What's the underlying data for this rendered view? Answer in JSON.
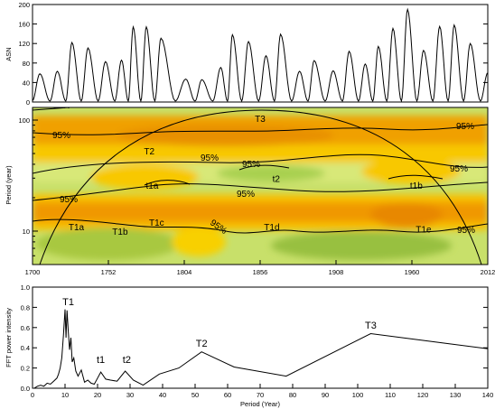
{
  "colors": {
    "cone": "#000000",
    "power_high": "#f0a000",
    "power_mid": "#f8c800",
    "power_low": "#98c840",
    "background": "#ffffff"
  },
  "chart_data": [
    {
      "type": "line",
      "ylabel": "ASN",
      "xlim": [
        1700,
        2012
      ],
      "ylim": [
        0,
        200
      ],
      "yticks": [
        0,
        40,
        80,
        120,
        160,
        200
      ],
      "cycle_maxima": [
        {
          "x": 1705,
          "y": 58
        },
        {
          "x": 1717,
          "y": 63
        },
        {
          "x": 1727,
          "y": 122
        },
        {
          "x": 1738,
          "y": 111
        },
        {
          "x": 1750,
          "y": 83
        },
        {
          "x": 1761,
          "y": 86
        },
        {
          "x": 1769,
          "y": 154
        },
        {
          "x": 1778,
          "y": 154
        },
        {
          "x": 1788,
          "y": 131
        },
        {
          "x": 1805,
          "y": 47
        },
        {
          "x": 1816,
          "y": 46
        },
        {
          "x": 1829,
          "y": 71
        },
        {
          "x": 1837,
          "y": 138
        },
        {
          "x": 1848,
          "y": 124
        },
        {
          "x": 1860,
          "y": 95
        },
        {
          "x": 1870,
          "y": 139
        },
        {
          "x": 1883,
          "y": 63
        },
        {
          "x": 1893,
          "y": 85
        },
        {
          "x": 1906,
          "y": 64
        },
        {
          "x": 1917,
          "y": 104
        },
        {
          "x": 1928,
          "y": 78
        },
        {
          "x": 1937,
          "y": 114
        },
        {
          "x": 1947,
          "y": 151
        },
        {
          "x": 1957,
          "y": 190
        },
        {
          "x": 1968,
          "y": 106
        },
        {
          "x": 1979,
          "y": 155
        },
        {
          "x": 1989,
          "y": 158
        },
        {
          "x": 2000,
          "y": 120
        },
        {
          "x": 2012,
          "y": 60
        }
      ]
    },
    {
      "type": "heatmap",
      "ylabel": "Period (year)",
      "xlim": [
        1700,
        2012
      ],
      "xticks": [
        "1700",
        "1752",
        "1804",
        "1856",
        "1908",
        "1960",
        "2012"
      ],
      "yscale": "log",
      "ylim": [
        5,
        130
      ],
      "yticks": [
        "100",
        "10"
      ],
      "significance_label": "95%",
      "features": [
        {
          "label": "T3",
          "x": 1856,
          "period": 104
        },
        {
          "label": "T2",
          "x": 1780,
          "period": 53
        },
        {
          "label": "t1a",
          "x": 1782,
          "period": 26
        },
        {
          "label": "t2",
          "x": 1867,
          "period": 30
        },
        {
          "label": "t1b",
          "x": 1963,
          "period": 26
        },
        {
          "label": "T1a",
          "x": 1730,
          "period": 11
        },
        {
          "label": "T1b",
          "x": 1760,
          "period": 10
        },
        {
          "label": "T1c",
          "x": 1785,
          "period": 12
        },
        {
          "label": "T1d",
          "x": 1864,
          "period": 11
        },
        {
          "label": "T1e",
          "x": 1968,
          "period": 10.5
        }
      ]
    },
    {
      "type": "line",
      "xlabel": "Period (Year)",
      "ylabel": "FFT power intensity",
      "xlim": [
        0,
        140
      ],
      "ylim": [
        0,
        1.0
      ],
      "xticks": [
        0,
        10,
        20,
        30,
        40,
        50,
        60,
        70,
        80,
        90,
        100,
        110,
        120,
        130,
        140
      ],
      "yticks": [
        "0.0",
        "0.2",
        "0.4",
        "0.6",
        "0.8",
        "1.0"
      ],
      "x": [
        0.5,
        1.5,
        2.5,
        3.5,
        4.5,
        5.5,
        6.5,
        7.5,
        8,
        8.5,
        9,
        9.5,
        10,
        10.3,
        10.6,
        11,
        11.4,
        11.8,
        12.2,
        12.7,
        13.3,
        14,
        15,
        16,
        17,
        18,
        19,
        20,
        21,
        22.5,
        24,
        26,
        28.5,
        31,
        34,
        39,
        45,
        52,
        62,
        78,
        104,
        140
      ],
      "y": [
        0.0,
        0.02,
        0.03,
        0.02,
        0.05,
        0.04,
        0.07,
        0.1,
        0.14,
        0.2,
        0.3,
        0.52,
        0.78,
        0.5,
        0.77,
        0.56,
        0.38,
        0.5,
        0.26,
        0.3,
        0.17,
        0.12,
        0.18,
        0.06,
        0.08,
        0.05,
        0.04,
        0.1,
        0.16,
        0.09,
        0.08,
        0.07,
        0.17,
        0.08,
        0.03,
        0.14,
        0.2,
        0.36,
        0.21,
        0.12,
        0.54,
        0.39
      ],
      "annotations": [
        {
          "label": "T1",
          "x": 11,
          "y": 0.82
        },
        {
          "label": "t1",
          "x": 21,
          "y": 0.25
        },
        {
          "label": "t2",
          "x": 29,
          "y": 0.25
        },
        {
          "label": "T2",
          "x": 52,
          "y": 0.41
        },
        {
          "label": "T3",
          "x": 104,
          "y": 0.59
        }
      ]
    }
  ]
}
